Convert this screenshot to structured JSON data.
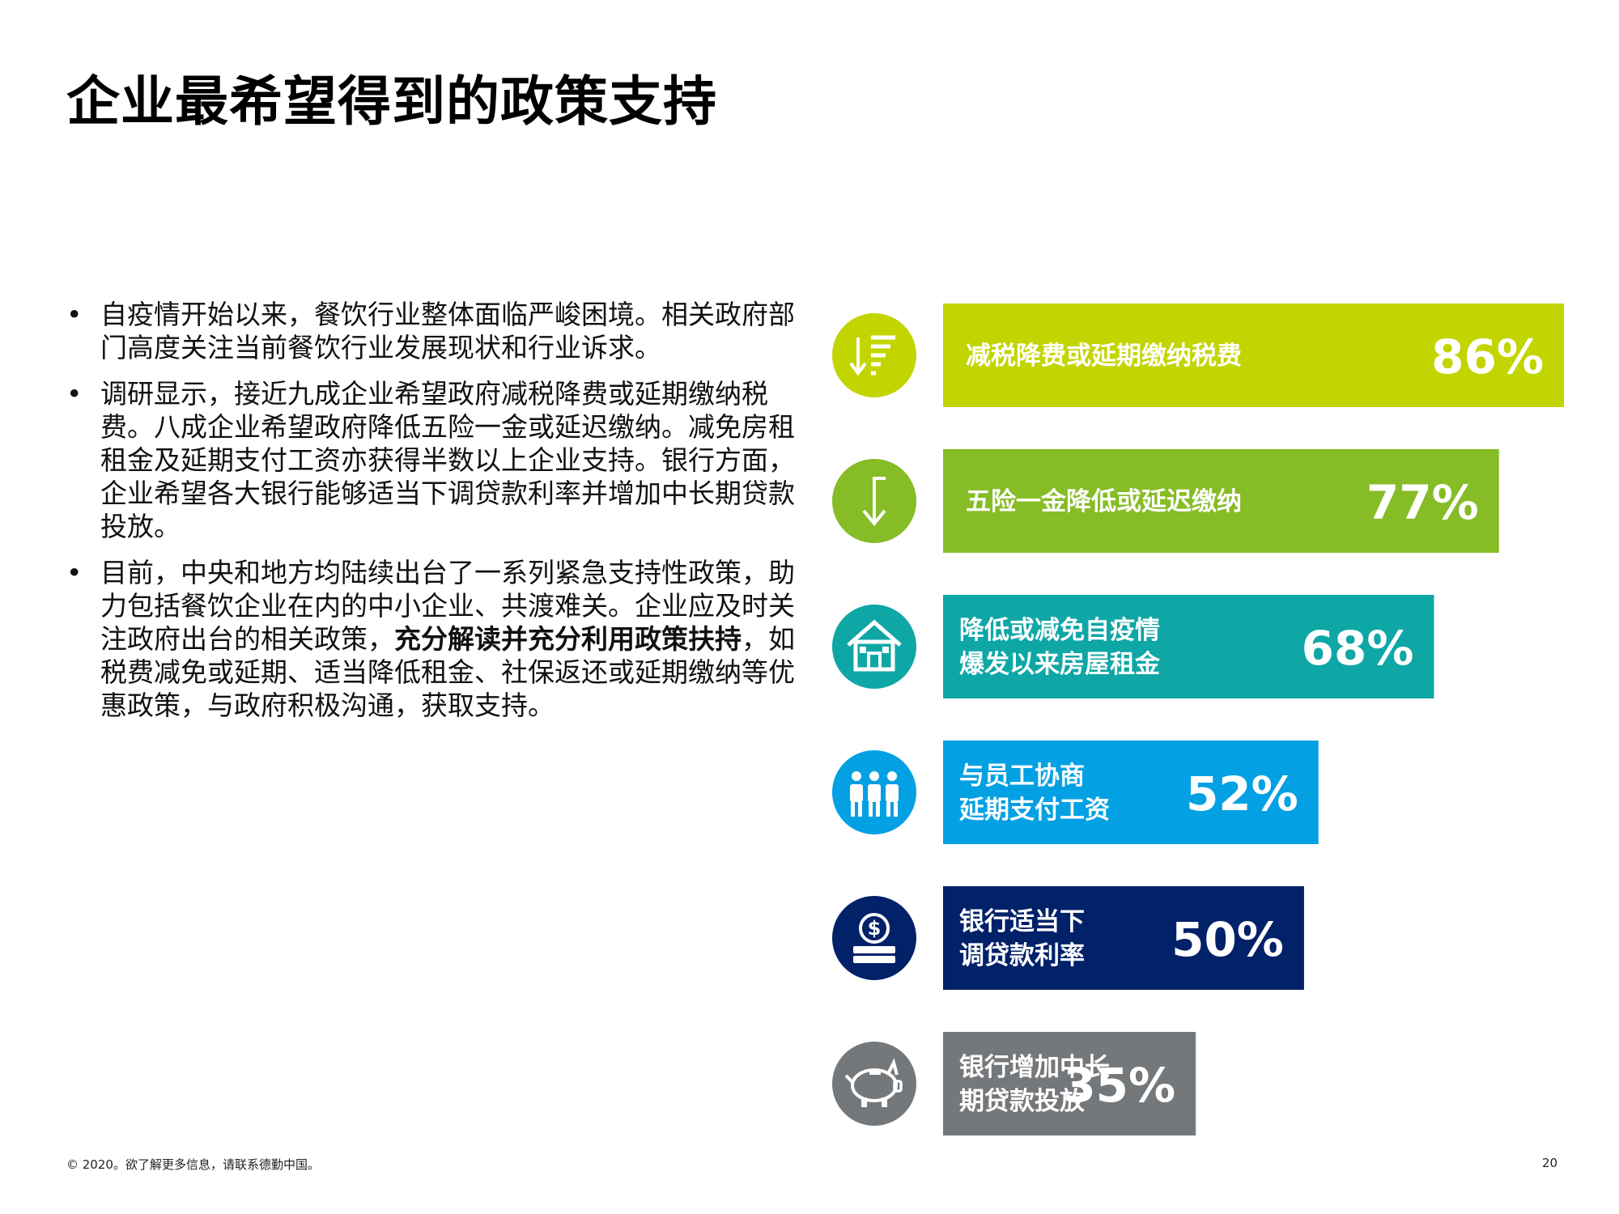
{
  "title": "企业最希望得到的政策支持",
  "bullets": [
    {
      "text": "自疫情开始以来，餐饮行业整体面临严峻困境。相关政府部门高度关注当前餐饮行业发展现状和行业诉求。"
    },
    {
      "text": "调研显示，接近九成企业希望政府减税降费或延期缴纳税费。八成企业希望政府降低五险一金或延迟缴纳。减免房租租金及延期支付工资亦获得半数以上企业支持。银行方面，企业希望各大银行能够适当下调贷款利率并增加中长期贷款投放。"
    },
    {
      "text_before": "目前，中央和地方均陆续出台了一系列紧急支持性政策，助力包括餐饮企业在内的中小企业、共渡难关。企业应及时关注政府出台的相关政策，",
      "text_bold": "充分解读并充分利用政策扶持",
      "text_after": "，如税费减免或延期、适当降低租金、社保返还或延期缴纳等优惠政策，与政府积极沟通，获取支持。"
    }
  ],
  "chart_data": {
    "type": "bar",
    "orientation": "horizontal",
    "value_unit": "%",
    "categories": [
      [
        "减税降费或延期缴纳税费"
      ],
      [
        "五险一金降低或延迟缴纳"
      ],
      [
        "降低或减免自疫情",
        "爆发以来房屋租金"
      ],
      [
        "与员工协商",
        "延期支付工资"
      ],
      [
        "银行适当下",
        "调贷款利率"
      ],
      [
        "银行增加中长",
        "期贷款投放"
      ]
    ],
    "values": [
      86,
      77,
      68,
      52,
      50,
      35
    ],
    "value_labels": [
      "86%",
      "77%",
      "68%",
      "52%",
      "50%",
      "35%"
    ],
    "colors": [
      "#c3d500",
      "#86bc25",
      "#0fa6a6",
      "#03a0e3",
      "#012169",
      "#75787b"
    ],
    "icons": [
      "sort-descending-icon",
      "arrow-down-icon",
      "house-icon",
      "people-icon",
      "coin-stack-icon",
      "piggy-bank-icon"
    ]
  },
  "footer": {
    "copyright": "© 2020。欲了解更多信息，请联系德勤中国。",
    "page_number": "20"
  }
}
